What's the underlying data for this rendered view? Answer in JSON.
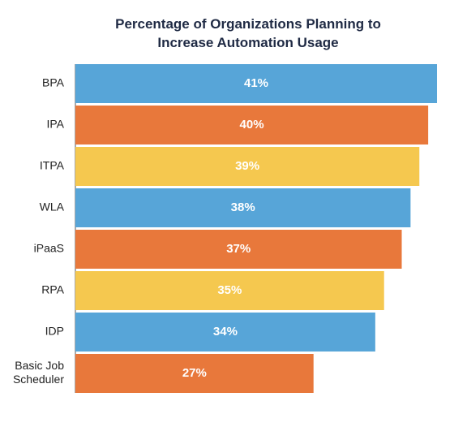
{
  "chart_data": {
    "type": "bar",
    "orientation": "horizontal",
    "title": "Percentage of Organizations Planning to\nIncrease Automation Usage",
    "xlabel": "",
    "ylabel": "",
    "xlim": [
      0,
      41
    ],
    "grid": false,
    "legend": "none",
    "categories": [
      "BPA",
      "IPA",
      "ITPA",
      "WLA",
      "iPaaS",
      "RPA",
      "IDP",
      "Basic Job\nScheduler"
    ],
    "values": [
      41,
      40,
      39,
      38,
      37,
      35,
      34,
      27
    ],
    "data_labels": [
      "41%",
      "40%",
      "39%",
      "38%",
      "37%",
      "35%",
      "34%",
      "27%"
    ],
    "bar_colors": [
      "#57a5d8",
      "#e8783b",
      "#f5c84f",
      "#57a5d8",
      "#e8783b",
      "#f5c84f",
      "#57a5d8",
      "#e8783b"
    ]
  },
  "colors": {
    "title": "#1f2a44",
    "category_label": "#222222",
    "data_label": "#ffffff",
    "axis_line": "#555555",
    "background": "#ffffff"
  }
}
